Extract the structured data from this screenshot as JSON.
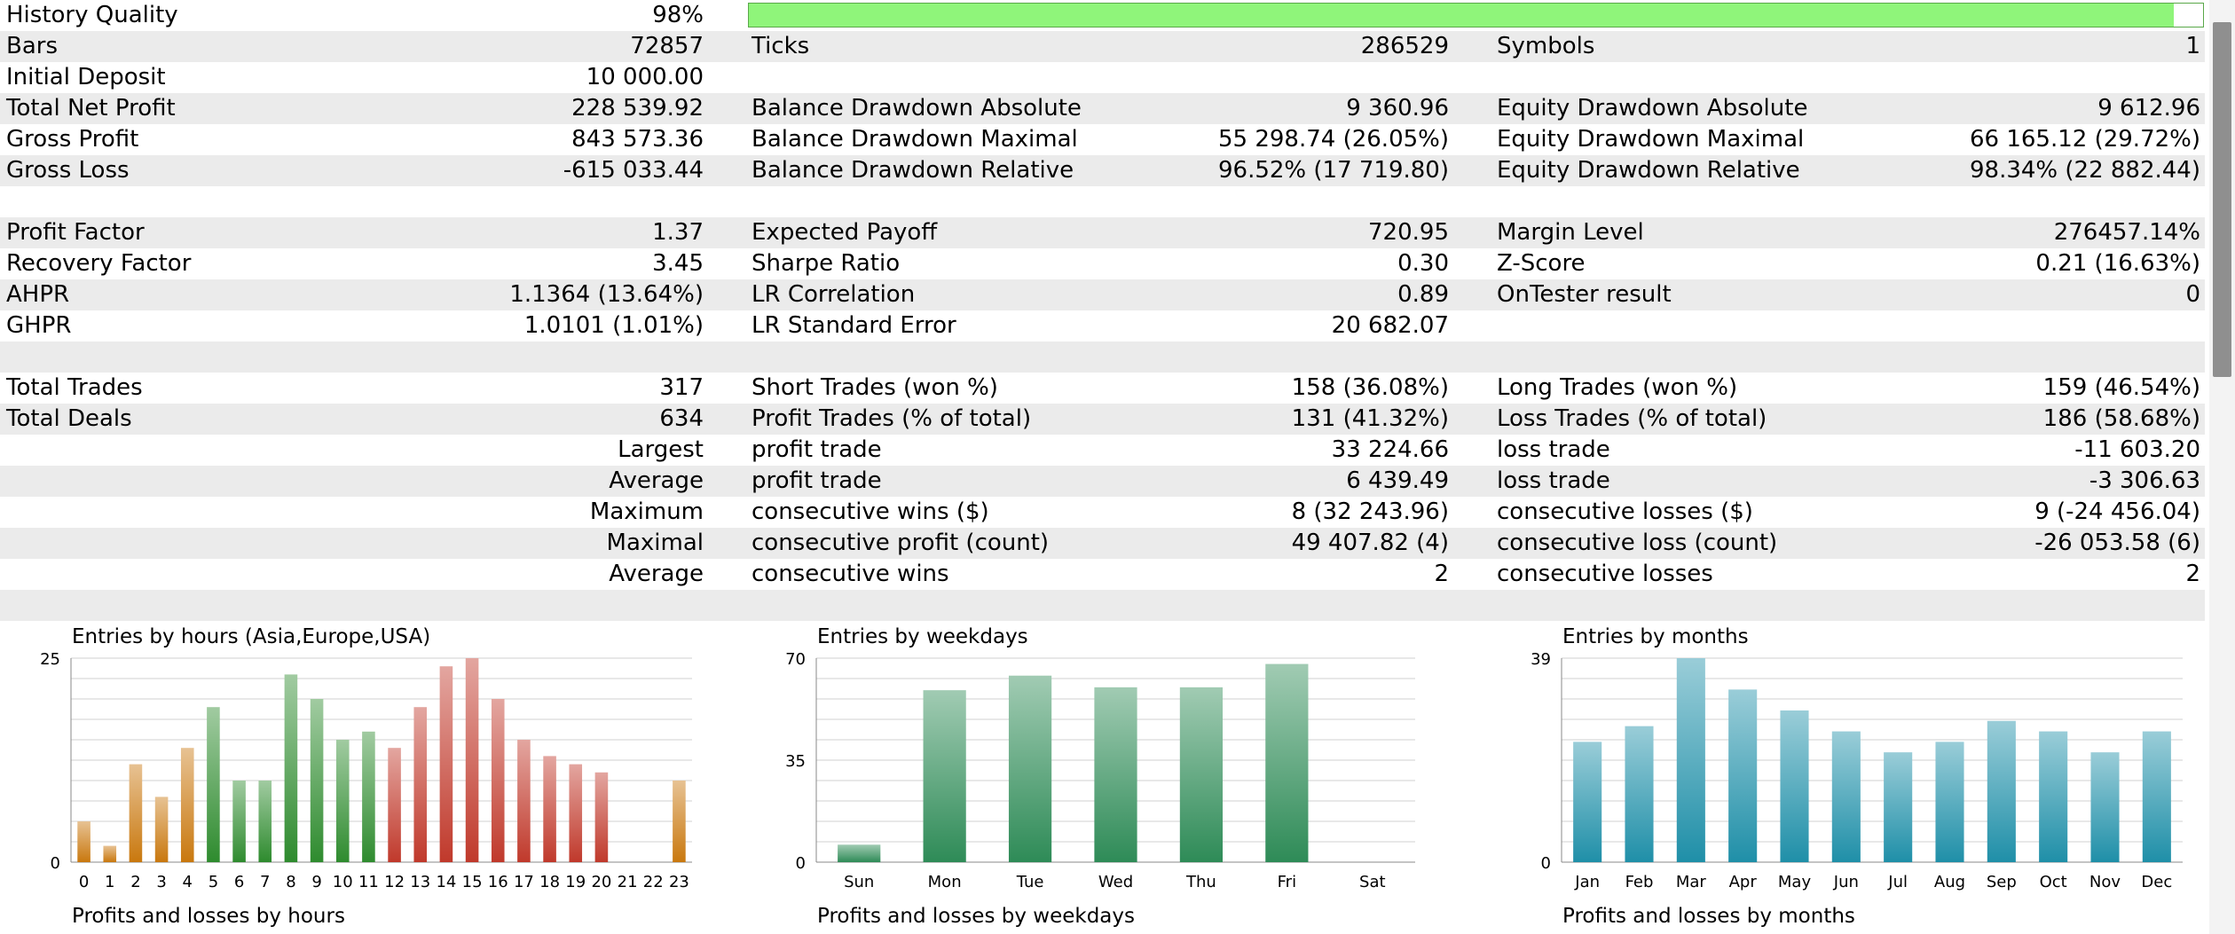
{
  "report": {
    "history_quality": {
      "label": "History Quality",
      "value": "98%",
      "bar_fraction": 0.98
    },
    "rows": [
      {
        "shade": true,
        "c": [
          "Bars",
          "72857",
          "Ticks",
          "286529",
          "Symbols",
          "1"
        ]
      },
      {
        "shade": false,
        "c": [
          "Initial Deposit",
          "10 000.00",
          "",
          "",
          "",
          ""
        ]
      },
      {
        "shade": true,
        "c": [
          "Total Net Profit",
          "228 539.92",
          "Balance Drawdown Absolute",
          "9 360.96",
          "Equity Drawdown Absolute",
          "9 612.96"
        ]
      },
      {
        "shade": false,
        "c": [
          "Gross Profit",
          "843 573.36",
          "Balance Drawdown Maximal",
          "55 298.74 (26.05%)",
          "Equity Drawdown Maximal",
          "66 165.12 (29.72%)"
        ]
      },
      {
        "shade": true,
        "c": [
          "Gross Loss",
          "-615 033.44",
          "Balance Drawdown Relative",
          "96.52% (17 719.80)",
          "Equity Drawdown Relative",
          "98.34% (22 882.44)"
        ]
      },
      {
        "shade": false,
        "c": [
          "",
          "",
          "",
          "",
          "",
          ""
        ]
      },
      {
        "shade": true,
        "c": [
          "Profit Factor",
          "1.37",
          "Expected Payoff",
          "720.95",
          "Margin Level",
          "276457.14%"
        ]
      },
      {
        "shade": false,
        "c": [
          "Recovery Factor",
          "3.45",
          "Sharpe Ratio",
          "0.30",
          "Z-Score",
          "0.21 (16.63%)"
        ]
      },
      {
        "shade": true,
        "c": [
          "AHPR",
          "1.1364 (13.64%)",
          "LR Correlation",
          "0.89",
          "OnTester result",
          "0"
        ]
      },
      {
        "shade": false,
        "c": [
          "GHPR",
          "1.0101 (1.01%)",
          "LR Standard Error",
          "20 682.07",
          "",
          ""
        ]
      },
      {
        "shade": true,
        "c": [
          "",
          "",
          "",
          "",
          "",
          ""
        ]
      },
      {
        "shade": false,
        "c": [
          "Total Trades",
          "317",
          "Short Trades (won %)",
          "158 (36.08%)",
          "Long Trades (won %)",
          "159 (46.54%)"
        ]
      },
      {
        "shade": true,
        "c": [
          "Total Deals",
          "634",
          "Profit Trades (% of total)",
          "131 (41.32%)",
          "Loss Trades (% of total)",
          "186 (58.68%)"
        ]
      },
      {
        "shade": false,
        "c": [
          "",
          "Largest",
          "profit trade",
          "33 224.66",
          "loss trade",
          "-11 603.20"
        ]
      },
      {
        "shade": true,
        "c": [
          "",
          "Average",
          "profit trade",
          "6 439.49",
          "loss trade",
          "-3 306.63"
        ]
      },
      {
        "shade": false,
        "c": [
          "",
          "Maximum",
          "consecutive wins ($)",
          "8 (32 243.96)",
          "consecutive losses ($)",
          "9 (-24 456.04)"
        ]
      },
      {
        "shade": true,
        "c": [
          "",
          "Maximal",
          "consecutive profit (count)",
          "49 407.82 (4)",
          "consecutive loss (count)",
          "-26 053.58 (6)"
        ]
      },
      {
        "shade": false,
        "c": [
          "",
          "Average",
          "consecutive wins",
          "2",
          "consecutive losses",
          "2"
        ]
      },
      {
        "shade": true,
        "c": [
          "",
          "",
          "",
          "",
          "",
          ""
        ]
      }
    ]
  },
  "chart_data": [
    {
      "type": "bar",
      "title": "Entries by hours (Asia,Europe,USA)",
      "categories": [
        "0",
        "1",
        "2",
        "3",
        "4",
        "5",
        "6",
        "7",
        "8",
        "9",
        "10",
        "11",
        "12",
        "13",
        "14",
        "15",
        "16",
        "17",
        "18",
        "19",
        "20",
        "21",
        "22",
        "23"
      ],
      "values": [
        5,
        2,
        12,
        8,
        14,
        19,
        10,
        10,
        23,
        20,
        15,
        16,
        14,
        19,
        24,
        25,
        20,
        15,
        13,
        12,
        11,
        0,
        0,
        10
      ],
      "ylim": [
        0,
        25
      ],
      "yticks": [
        "0",
        "25"
      ],
      "grid": true,
      "colors": [
        "#c9780e",
        "#c9780e",
        "#c9780e",
        "#c9780e",
        "#c9780e",
        "#2e8b2e",
        "#2e8b2e",
        "#2e8b2e",
        "#2e8b2e",
        "#2e8b2e",
        "#2e8b2e",
        "#2e8b2e",
        "#c0392b",
        "#c0392b",
        "#c0392b",
        "#c0392b",
        "#c0392b",
        "#c0392b",
        "#c0392b",
        "#c0392b",
        "#c0392b",
        "#c9780e",
        "#c9780e",
        "#c9780e"
      ]
    },
    {
      "type": "bar",
      "title": "Entries by weekdays",
      "categories": [
        "Sun",
        "Mon",
        "Tue",
        "Wed",
        "Thu",
        "Fri",
        "Sat"
      ],
      "values": [
        6,
        59,
        64,
        60,
        60,
        68,
        0
      ],
      "ylim": [
        0,
        70
      ],
      "yticks": [
        "0",
        "35",
        "70"
      ],
      "grid": true,
      "colors": [
        "#2e8b57",
        "#2e8b57",
        "#2e8b57",
        "#2e8b57",
        "#2e8b57",
        "#2e8b57",
        "#2e8b57"
      ]
    },
    {
      "type": "bar",
      "title": "Entries by months",
      "categories": [
        "Jan",
        "Feb",
        "Mar",
        "Apr",
        "May",
        "Jun",
        "Jul",
        "Aug",
        "Sep",
        "Oct",
        "Nov",
        "Dec"
      ],
      "values": [
        23,
        26,
        39,
        33,
        29,
        25,
        21,
        23,
        27,
        25,
        21,
        25
      ],
      "ylim": [
        0,
        39
      ],
      "yticks": [
        "0",
        "39"
      ],
      "grid": true,
      "colors": [
        "#1f8fa8",
        "#1f8fa8",
        "#1f8fa8",
        "#1f8fa8",
        "#1f8fa8",
        "#1f8fa8",
        "#1f8fa8",
        "#1f8fa8",
        "#1f8fa8",
        "#1f8fa8",
        "#1f8fa8",
        "#1f8fa8"
      ]
    }
  ],
  "lower_titles": [
    "Profits and losses by hours",
    "Profits and losses by weekdays",
    "Profits and losses by months"
  ]
}
